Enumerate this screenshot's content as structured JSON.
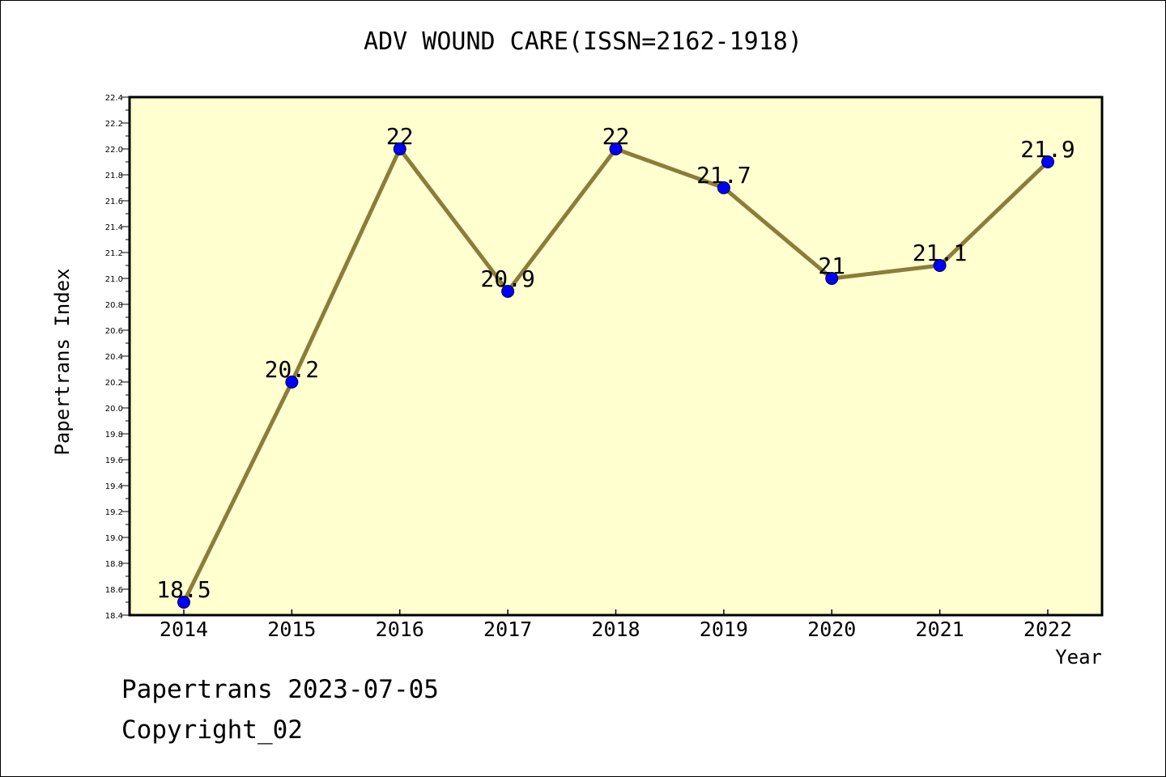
{
  "chart_data": {
    "type": "line",
    "title": "ADV WOUND CARE(ISSN=2162-1918)",
    "xlabel": "Year",
    "ylabel": "Papertrans Index",
    "categories": [
      "2014",
      "2015",
      "2016",
      "2017",
      "2018",
      "2019",
      "2020",
      "2021",
      "2022"
    ],
    "series": [
      {
        "values": [
          18.5,
          20.2,
          22.0,
          20.9,
          22.0,
          21.7,
          21.0,
          21.1,
          21.9
        ],
        "data_labels": [
          "18.5",
          "20.2",
          "22",
          "20.9",
          "22",
          "21.7",
          "21",
          "21.1",
          "21.9"
        ]
      }
    ],
    "ylim": [
      18.4,
      22.4
    ],
    "yticks": [
      "18.4",
      "18.6",
      "18.8",
      "19.0",
      "19.2",
      "19.4",
      "19.6",
      "19.8",
      "20.0",
      "20.2",
      "20.4",
      "20.6",
      "20.8",
      "21.0",
      "21.2",
      "21.4",
      "21.6",
      "21.8",
      "22.0",
      "22.2",
      "22.4"
    ],
    "grid": false,
    "legend": "none",
    "colors": {
      "plot_background": "#ffffd0",
      "line": "#8b7d3a",
      "marker": "#0000ff"
    }
  },
  "footer": {
    "date_text": "Papertrans 2023-07-05",
    "copyright_text": "Copyright_02"
  }
}
